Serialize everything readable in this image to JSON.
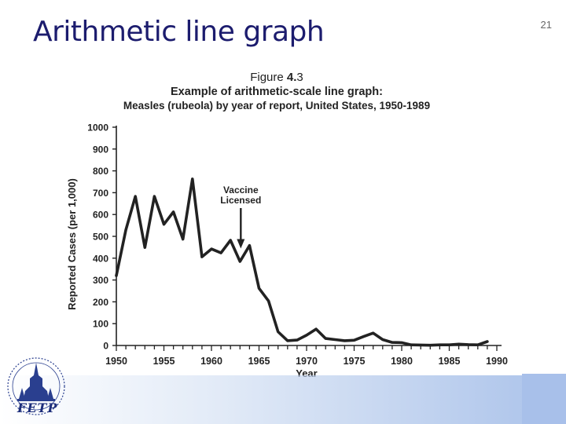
{
  "slide": {
    "title": "Arithmetic line graph",
    "number": "21"
  },
  "logo": {
    "text": "FETP"
  },
  "chart_data": {
    "type": "line",
    "figure_label": "Figure 4.3",
    "title": "Example of arithmetic-scale line graph:",
    "subtitle": "Measles (rubeola) by year of report, United States, 1950-1989",
    "xlabel": "Year",
    "ylabel": "Reported Cases (per 1,000)",
    "xlim": [
      1950,
      1990
    ],
    "ylim": [
      0,
      1000
    ],
    "x_ticks": [
      1950,
      1955,
      1960,
      1965,
      1970,
      1975,
      1980,
      1985,
      1990
    ],
    "y_ticks": [
      0,
      100,
      200,
      300,
      400,
      500,
      600,
      700,
      800,
      900,
      1000
    ],
    "grid": false,
    "series": [
      {
        "x": [
          1950,
          1951,
          1952,
          1953,
          1954,
          1955,
          1956,
          1957,
          1958,
          1959,
          1960,
          1961,
          1962,
          1963,
          1964,
          1965,
          1966,
          1967,
          1968,
          1969,
          1970,
          1971,
          1972,
          1973,
          1974,
          1975,
          1976,
          1977,
          1978,
          1979,
          1980,
          1981,
          1982,
          1983,
          1984,
          1985,
          1986,
          1987,
          1988,
          1989
        ],
        "values": [
          320,
          530,
          683,
          449,
          683,
          555,
          612,
          487,
          763,
          406,
          442,
          424,
          482,
          385,
          458,
          262,
          204,
          63,
          22,
          25,
          47,
          75,
          32,
          27,
          22,
          24,
          41,
          57,
          27,
          14,
          13,
          3,
          2,
          1,
          3,
          3,
          6,
          4,
          3,
          18
        ]
      }
    ],
    "annotations": [
      {
        "text_lines": [
          "Vaccine",
          "Licensed"
        ],
        "year": 1963,
        "value": 430
      }
    ],
    "color": "#222222"
  }
}
